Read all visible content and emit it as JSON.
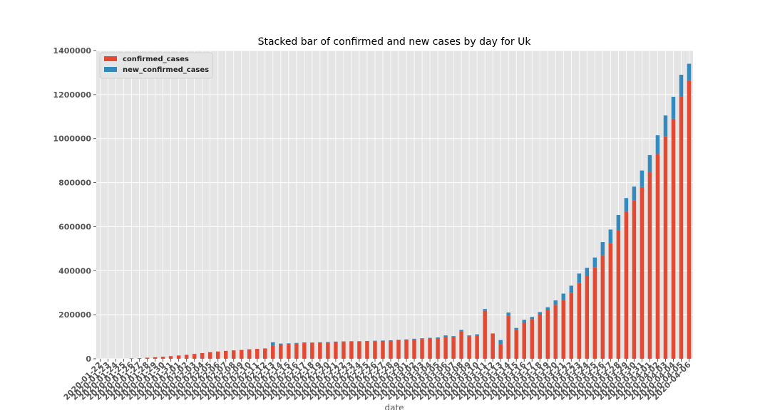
{
  "chart_data": {
    "type": "bar",
    "stacked": true,
    "title": "Stacked bar of confirmed and new cases by day for Uk",
    "xlabel": "date",
    "ylabel": "",
    "ylim": [
      0,
      1400000
    ],
    "yticks": [
      "0",
      "200000",
      "400000",
      "600000",
      "800000",
      "1000000",
      "1200000",
      "1400000"
    ],
    "grid": true,
    "legend_position": "top-left",
    "categories": [
      "2020-01-22",
      "2020-01-23",
      "2020-01-24",
      "2020-01-25",
      "2020-01-26",
      "2020-01-27",
      "2020-01-28",
      "2020-01-29",
      "2020-01-30",
      "2020-01-31",
      "2020-02-01",
      "2020-02-02",
      "2020-02-03",
      "2020-02-04",
      "2020-02-05",
      "2020-02-06",
      "2020-02-07",
      "2020-02-08",
      "2020-02-09",
      "2020-02-10",
      "2020-02-11",
      "2020-02-12",
      "2020-02-13",
      "2020-02-14",
      "2020-02-15",
      "2020-02-16",
      "2020-02-17",
      "2020-02-18",
      "2020-02-19",
      "2020-02-20",
      "2020-02-21",
      "2020-02-22",
      "2020-02-23",
      "2020-02-24",
      "2020-02-25",
      "2020-02-26",
      "2020-02-27",
      "2020-02-28",
      "2020-02-29",
      "2020-03-01",
      "2020-03-02",
      "2020-03-03",
      "2020-03-04",
      "2020-03-05",
      "2020-03-06",
      "2020-03-07",
      "2020-03-08",
      "2020-03-09",
      "2020-03-10",
      "2020-03-11",
      "2020-03-12",
      "2020-03-13",
      "2020-03-14",
      "2020-03-15",
      "2020-03-16",
      "2020-03-17",
      "2020-03-18",
      "2020-03-19",
      "2020-03-20",
      "2020-03-21",
      "2020-03-22",
      "2020-03-23",
      "2020-03-24",
      "2020-03-25",
      "2020-03-26",
      "2020-03-27",
      "2020-03-28",
      "2020-03-29",
      "2020-03-30",
      "2020-03-31",
      "2020-04-01",
      "2020-04-02",
      "2020-04-03",
      "2020-04-04",
      "2020-04-05",
      "2020-04-06"
    ],
    "series": [
      {
        "name": "confirmed_cases",
        "color": "#E24A33",
        "values": [
          0,
          0,
          0,
          0,
          2000,
          3000,
          5000,
          7000,
          9000,
          12000,
          15000,
          18000,
          22000,
          26000,
          30000,
          33000,
          36000,
          38000,
          40000,
          43000,
          45000,
          47000,
          60000,
          63000,
          66000,
          69000,
          71000,
          72000,
          73000,
          74000,
          76000,
          77000,
          78000,
          78000,
          79000,
          80000,
          81000,
          82000,
          84000,
          86000,
          88000,
          90000,
          92000,
          94000,
          100000,
          100000,
          125000,
          102000,
          105000,
          218000,
          115000,
          65000,
          195000,
          130000,
          165000,
          180000,
          200000,
          220000,
          245000,
          268000,
          300000,
          345000,
          375000,
          415000,
          470000,
          525000,
          585000,
          670000,
          720000,
          780000,
          850000,
          930000,
          1010000,
          1090000,
          1190000,
          1265000
        ]
      },
      {
        "name": "new_confirmed_cases",
        "color": "#348ABD",
        "values": [
          0,
          0,
          0,
          0,
          0,
          0,
          0,
          0,
          0,
          0,
          0,
          0,
          0,
          0,
          0,
          0,
          0,
          0,
          0,
          0,
          0,
          0,
          15000,
          6000,
          4000,
          3000,
          3000,
          2000,
          2000,
          2000,
          2000,
          2000,
          2000,
          2000,
          2000,
          2000,
          2000,
          2000,
          2000,
          2000,
          3000,
          3000,
          3000,
          3000,
          6000,
          3000,
          6000,
          4000,
          6000,
          8000,
          0,
          20000,
          15000,
          10000,
          12000,
          10000,
          12000,
          14000,
          20000,
          28000,
          32000,
          42000,
          38000,
          45000,
          60000,
          62000,
          68000,
          60000,
          62000,
          75000,
          75000,
          85000,
          95000,
          100000,
          100000,
          75000
        ]
      }
    ]
  }
}
